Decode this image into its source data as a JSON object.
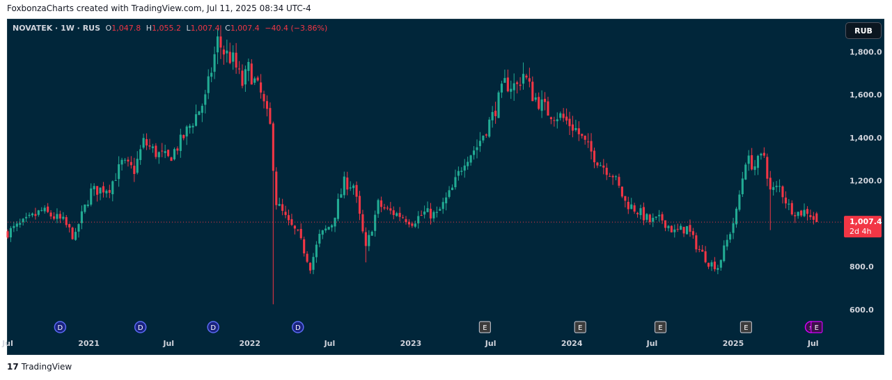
{
  "caption": "FoxbonzaCharts created with TradingView.com, Jul 11, 2025 08:34 UTC-4",
  "legend": {
    "symbol": "NOVATEK · 1W · RUS",
    "o_label": "O",
    "o": "1,047.8",
    "h_label": "H",
    "h": "1,055.2",
    "l_label": "L",
    "l": "1,007.4",
    "c_label": "C",
    "c": "1,007.4",
    "change": "−40.4 (−3.86%)"
  },
  "currency_button": "RUB",
  "brand": {
    "logo": "17",
    "name": "TradingView"
  },
  "colors": {
    "up": "#22ab94",
    "down": "#f23645",
    "background": "#01263a",
    "axis_text": "#d1d4dc"
  },
  "chart_data": {
    "type": "candlestick",
    "symbol": "NOVATEK",
    "interval": "1W",
    "currency": "RUB",
    "ylim": [
      480,
      1950
    ],
    "y_ticks": [
      {
        "value": 1800,
        "label": "1,800.0"
      },
      {
        "value": 1600,
        "label": "1,600.0"
      },
      {
        "value": 1400,
        "label": "1,400.0"
      },
      {
        "value": 1200,
        "label": "1,200.0"
      },
      {
        "value": 1000,
        "label": ""
      },
      {
        "value": 800,
        "label": "800.0"
      },
      {
        "value": 600,
        "label": "600.0"
      }
    ],
    "x_range": [
      "2020-07-01",
      "2025-08-21"
    ],
    "x_ticks": [
      {
        "date": "2020-07-01",
        "label": "Jul"
      },
      {
        "date": "2021-01-01",
        "label": "2021"
      },
      {
        "date": "2021-07-01",
        "label": "Jul"
      },
      {
        "date": "2022-01-01",
        "label": "2022"
      },
      {
        "date": "2022-07-01",
        "label": "Jul"
      },
      {
        "date": "2023-01-01",
        "label": "2023"
      },
      {
        "date": "2023-07-01",
        "label": "Jul"
      },
      {
        "date": "2024-01-01",
        "label": "2024"
      },
      {
        "date": "2024-07-01",
        "label": "Jul"
      },
      {
        "date": "2025-01-01",
        "label": "2025"
      },
      {
        "date": "2025-07-01",
        "label": "Jul"
      }
    ],
    "last_price": {
      "value": 1007.4,
      "label": "1,007.4",
      "countdown": "2d 4h"
    },
    "events": [
      {
        "date": "2020-10-28",
        "label": "D",
        "kind": "dividend"
      },
      {
        "date": "2021-04-28",
        "label": "D",
        "kind": "dividend"
      },
      {
        "date": "2021-10-10",
        "label": "D",
        "kind": "dividend"
      },
      {
        "date": "2022-04-20",
        "label": "D",
        "kind": "dividend"
      },
      {
        "date": "2023-06-18",
        "label": "E",
        "kind": "earnings"
      },
      {
        "date": "2024-01-20",
        "label": "E",
        "kind": "earnings"
      },
      {
        "date": "2024-07-20",
        "label": "E",
        "kind": "earnings"
      },
      {
        "date": "2025-01-30",
        "label": "E",
        "kind": "earnings"
      },
      {
        "date": "2025-06-26",
        "label": "⚡",
        "kind": "split"
      },
      {
        "date": "2025-07-09",
        "label": "E",
        "kind": "earnings-upcoming"
      }
    ],
    "anchors": [
      [
        "2020-07-01",
        960
      ],
      [
        "2020-08-12",
        1010
      ],
      [
        "2020-09-16",
        1060
      ],
      [
        "2020-11-04",
        1010
      ],
      [
        "2020-12-01",
        930
      ],
      [
        "2020-12-09",
        1000
      ],
      [
        "2021-01-06",
        1150
      ],
      [
        "2021-02-17",
        1170
      ],
      [
        "2021-03-17",
        1280
      ],
      [
        "2021-04-14",
        1250
      ],
      [
        "2021-05-05",
        1380
      ],
      [
        "2021-06-02",
        1330
      ],
      [
        "2021-06-30",
        1300
      ],
      [
        "2021-07-28",
        1380
      ],
      [
        "2021-08-25",
        1480
      ],
      [
        "2021-09-22",
        1580
      ],
      [
        "2021-10-20",
        1850
      ],
      [
        "2021-11-03",
        1800
      ],
      [
        "2021-11-24",
        1760
      ],
      [
        "2021-12-15",
        1650
      ],
      [
        "2021-12-29",
        1720
      ],
      [
        "2022-01-26",
        1600
      ],
      [
        "2022-02-16",
        1450
      ],
      [
        "2022-03-02",
        1100
      ],
      [
        "2022-03-30",
        1000
      ],
      [
        "2022-04-20",
        950
      ],
      [
        "2022-05-18",
        800
      ],
      [
        "2022-06-08",
        940
      ],
      [
        "2022-07-06",
        1000
      ],
      [
        "2022-08-03",
        1190
      ],
      [
        "2022-08-24",
        1180
      ],
      [
        "2022-09-21",
        880
      ],
      [
        "2022-10-19",
        1090
      ],
      [
        "2022-11-09",
        1060
      ],
      [
        "2022-12-07",
        1040
      ],
      [
        "2023-01-04",
        1010
      ],
      [
        "2023-02-01",
        1050
      ],
      [
        "2023-03-01",
        1040
      ],
      [
        "2023-04-05",
        1160
      ],
      [
        "2023-05-03",
        1300
      ],
      [
        "2023-05-31",
        1360
      ],
      [
        "2023-07-05",
        1500
      ],
      [
        "2023-08-02",
        1650
      ],
      [
        "2023-08-30",
        1640
      ],
      [
        "2023-09-13",
        1700
      ],
      [
        "2023-10-04",
        1600
      ],
      [
        "2023-11-08",
        1520
      ],
      [
        "2023-12-06",
        1500
      ],
      [
        "2024-01-10",
        1440
      ],
      [
        "2024-02-07",
        1350
      ],
      [
        "2024-03-06",
        1280
      ],
      [
        "2024-04-03",
        1230
      ],
      [
        "2024-05-01",
        1100
      ],
      [
        "2024-05-29",
        1060
      ],
      [
        "2024-06-26",
        1010
      ],
      [
        "2024-07-24",
        1020
      ],
      [
        "2024-08-21",
        960
      ],
      [
        "2024-09-18",
        980
      ],
      [
        "2024-10-09",
        900
      ],
      [
        "2024-11-06",
        820
      ],
      [
        "2024-11-27",
        800
      ],
      [
        "2024-12-18",
        920
      ],
      [
        "2025-01-08",
        1050
      ],
      [
        "2025-01-29",
        1300
      ],
      [
        "2025-02-19",
        1270
      ],
      [
        "2025-03-12",
        1320
      ],
      [
        "2025-03-26",
        1150
      ],
      [
        "2025-04-16",
        1170
      ],
      [
        "2025-05-07",
        1080
      ],
      [
        "2025-05-28",
        1050
      ],
      [
        "2025-06-18",
        1060
      ],
      [
        "2025-07-09",
        1007
      ]
    ],
    "spikes": [
      {
        "date": "2021-10-20",
        "high": 1905
      },
      {
        "date": "2022-02-23",
        "low": 625
      },
      {
        "date": "2022-05-25",
        "low": 765
      },
      {
        "date": "2022-09-21",
        "low": 820
      },
      {
        "date": "2023-09-13",
        "high": 1750
      },
      {
        "date": "2024-11-27",
        "low": 765
      },
      {
        "date": "2025-03-26",
        "low": 970
      }
    ]
  }
}
